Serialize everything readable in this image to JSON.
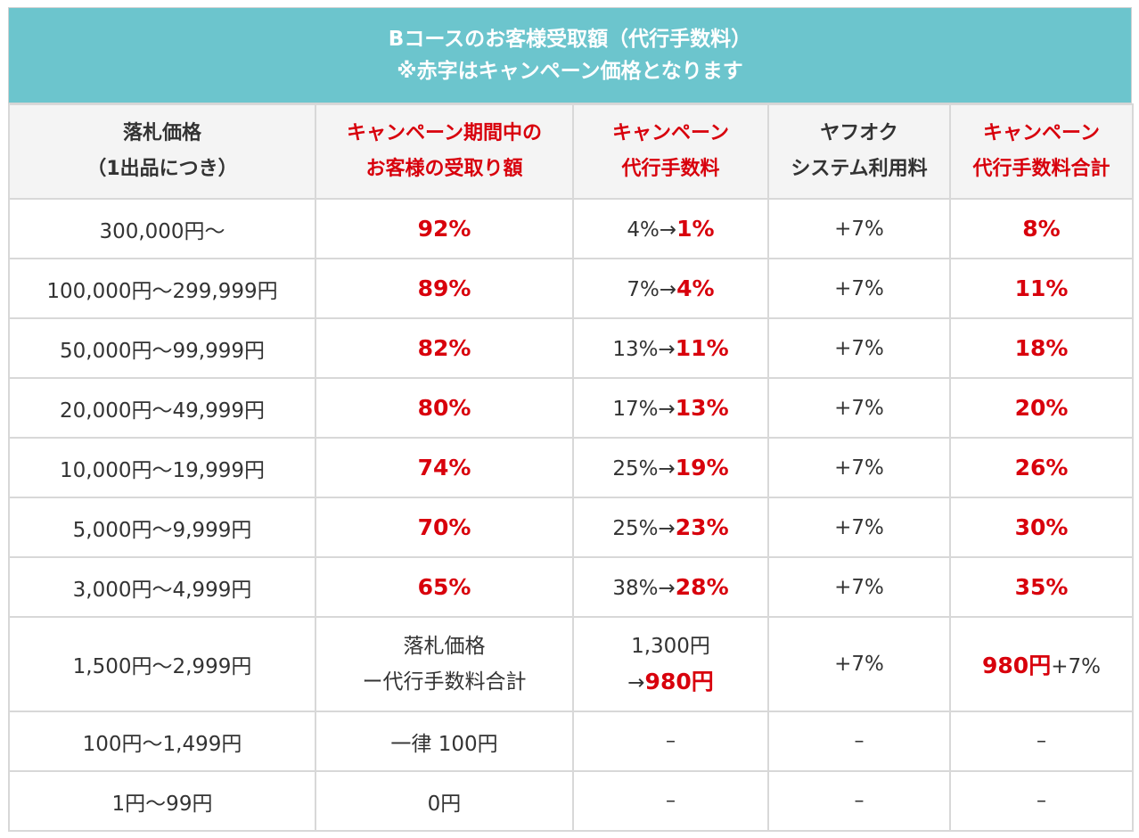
{
  "title": {
    "line1": "Bコースのお客様受取額（代行手数料）",
    "line2": "※赤字はキャンペーン価格となります"
  },
  "headers": [
    {
      "line1": "落札価格",
      "line2": "（1出品につき）"
    },
    {
      "line1": "キャンペーン期間中の",
      "line2": "お客様の受取り額"
    },
    {
      "line1": "キャンペーン",
      "line2": "代行手数料"
    },
    {
      "line1": "ヤフオク",
      "line2": "システム利用料"
    },
    {
      "line1": "キャンペーン",
      "line2": "代行手数料合計"
    }
  ],
  "rows": [
    {
      "price": "300,000円〜",
      "receive": "92%",
      "fee_old": "4%→",
      "fee_new": "1%",
      "system": "+7%",
      "total": "8%"
    },
    {
      "price": "100,000円〜299,999円",
      "receive": "89%",
      "fee_old": "7%→",
      "fee_new": "4%",
      "system": "+7%",
      "total": "11%"
    },
    {
      "price": "50,000円〜99,999円",
      "receive": "82%",
      "fee_old": "13%→",
      "fee_new": "11%",
      "system": "+7%",
      "total": "18%"
    },
    {
      "price": "20,000円〜49,999円",
      "receive": "80%",
      "fee_old": "17%→",
      "fee_new": "13%",
      "system": "+7%",
      "total": "20%"
    },
    {
      "price": "10,000円〜19,999円",
      "receive": "74%",
      "fee_old": "25%→",
      "fee_new": "19%",
      "system": "+7%",
      "total": "26%"
    },
    {
      "price": "5,000円〜9,999円",
      "receive": "70%",
      "fee_old": "25%→",
      "fee_new": "23%",
      "system": "+7%",
      "total": "30%"
    },
    {
      "price": "3,000円〜4,999円",
      "receive": "65%",
      "fee_old": "38%→",
      "fee_new": "28%",
      "system": "+7%",
      "total": "35%"
    }
  ],
  "row_1500": {
    "price": "1,500円〜2,999円",
    "receive_line1": "落札価格",
    "receive_line2": "ー代行手数料合計",
    "fee_line1": "1,300円",
    "fee_arrow": "→",
    "fee_new": "980円",
    "system": "+7%",
    "total_red": "980円",
    "total_plus": "+7%"
  },
  "row_100": {
    "price": "100円〜1,499円",
    "receive": "一律 100円",
    "fee": "–",
    "system": "–",
    "total": "–"
  },
  "row_1": {
    "price": "1円〜99円",
    "receive": "0円",
    "fee": "–",
    "system": "–",
    "total": "–"
  },
  "colors": {
    "header_bg": "#6cc5cd",
    "campaign_red": "#d8000c",
    "border": "#d8d8d8",
    "th_bg": "#f4f4f4"
  }
}
